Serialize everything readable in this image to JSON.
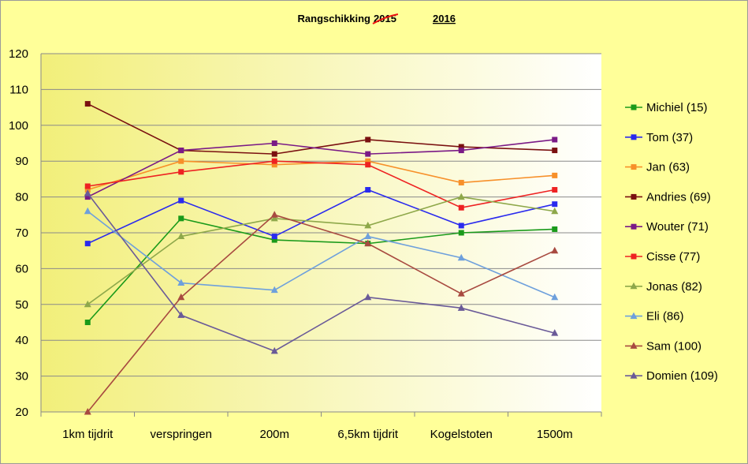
{
  "chart_data": {
    "type": "line",
    "title": {
      "prefix": "Rangschikking",
      "struck_year": "2015",
      "new_year": "2016"
    },
    "categories": [
      "1km tijdrit",
      "verspringen",
      "200m",
      "6,5km tijdrit",
      "Kogelstoten",
      "1500m"
    ],
    "ylim": [
      20,
      120
    ],
    "yticks": [
      "20",
      "30",
      "40",
      "50",
      "60",
      "70",
      "80",
      "90",
      "100",
      "110",
      "120"
    ],
    "grid": "horizontal",
    "legend_position": "right",
    "series": [
      {
        "name": "Michiel (15)",
        "color": "#1a9a1a",
        "marker": "square",
        "values": [
          45,
          74,
          68,
          67,
          70,
          71
        ]
      },
      {
        "name": "Tom (37)",
        "color": "#2a2aee",
        "marker": "square",
        "values": [
          67,
          79,
          69,
          82,
          72,
          78
        ]
      },
      {
        "name": "Jan (63)",
        "color": "#f7902a",
        "marker": "square",
        "values": [
          82,
          90,
          89,
          90,
          84,
          86
        ]
      },
      {
        "name": "Andries (69)",
        "color": "#7a1010",
        "marker": "square",
        "values": [
          106,
          93,
          92,
          96,
          94,
          93
        ]
      },
      {
        "name": "Wouter (71)",
        "color": "#7a1a86",
        "marker": "square",
        "values": [
          80,
          93,
          95,
          92,
          93,
          96
        ]
      },
      {
        "name": "Cisse (77)",
        "color": "#ee2222",
        "marker": "square",
        "values": [
          83,
          87,
          90,
          89,
          77,
          82
        ]
      },
      {
        "name": "Jonas (82)",
        "color": "#8ea84a",
        "marker": "triangle",
        "values": [
          50,
          69,
          74,
          72,
          80,
          76
        ]
      },
      {
        "name": "Eli (86)",
        "color": "#6ea0dc",
        "marker": "triangle",
        "values": [
          76,
          56,
          54,
          69,
          63,
          52
        ]
      },
      {
        "name": "Sam (100)",
        "color": "#a84a40",
        "marker": "triangle",
        "values": [
          20,
          52,
          75,
          67,
          53,
          65
        ]
      },
      {
        "name": "Domien (109)",
        "color": "#6a5a98",
        "marker": "triangle",
        "values": [
          81,
          47,
          37,
          52,
          49,
          42
        ]
      }
    ]
  }
}
